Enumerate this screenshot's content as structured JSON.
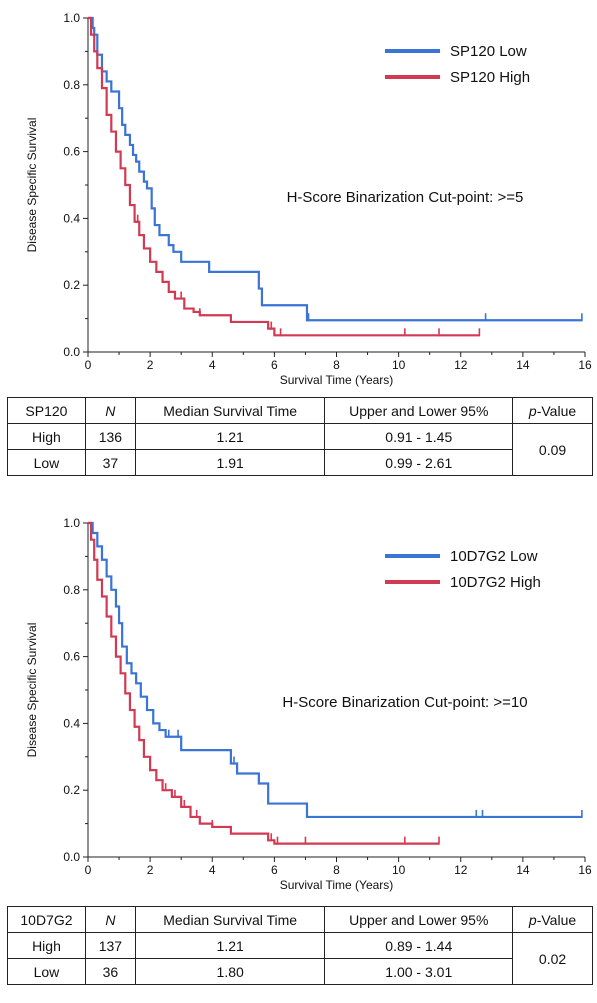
{
  "chart_data": [
    {
      "type": "line",
      "subtype": "kaplan-meier-step",
      "ylabel": "Disease Specific Survival",
      "xlabel": "Survival Time (Years)",
      "xlim": [
        0,
        16
      ],
      "ylim": [
        0,
        1.0
      ],
      "x_ticks": [
        0,
        2,
        4,
        6,
        8,
        10,
        12,
        14,
        16
      ],
      "y_ticks": [
        0.0,
        0.2,
        0.4,
        0.6,
        0.8,
        1.0
      ],
      "x_tick_labels": [
        "0",
        "2",
        "4",
        "6",
        "8",
        "10",
        "12",
        "14",
        "16"
      ],
      "y_tick_labels": [
        "0.0",
        "0.2",
        "0.4",
        "0.6",
        "0.8",
        "1.0"
      ],
      "annotation": "H-Score Binarization Cut-point: >=5",
      "legend_position": "top-right",
      "series": [
        {
          "name": "SP120 Low",
          "color": "#3a74d4",
          "x": [
            0,
            0.15,
            0.2,
            0.3,
            0.45,
            0.6,
            0.75,
            1.0,
            1.1,
            1.2,
            1.35,
            1.45,
            1.55,
            1.65,
            1.8,
            1.9,
            2.05,
            2.15,
            2.3,
            2.6,
            2.75,
            3.0,
            3.9,
            5.5,
            5.6,
            7.05,
            15.9
          ],
          "y": [
            1.0,
            0.97,
            0.95,
            0.89,
            0.84,
            0.81,
            0.78,
            0.73,
            0.68,
            0.65,
            0.62,
            0.59,
            0.57,
            0.54,
            0.51,
            0.49,
            0.43,
            0.38,
            0.35,
            0.32,
            0.3,
            0.27,
            0.24,
            0.19,
            0.14,
            0.095,
            0.095
          ],
          "censor_x": [
            7.1,
            12.8,
            15.9
          ]
        },
        {
          "name": "SP120 High",
          "color": "#d23a54",
          "x": [
            0,
            0.1,
            0.2,
            0.3,
            0.45,
            0.6,
            0.75,
            0.9,
            1.05,
            1.2,
            1.35,
            1.5,
            1.65,
            1.8,
            2.0,
            2.2,
            2.4,
            2.6,
            2.8,
            3.1,
            3.4,
            3.6,
            4.6,
            5.8,
            6.0,
            12.6
          ],
          "y": [
            1.0,
            0.95,
            0.9,
            0.85,
            0.79,
            0.71,
            0.66,
            0.6,
            0.55,
            0.5,
            0.44,
            0.39,
            0.35,
            0.31,
            0.27,
            0.24,
            0.21,
            0.18,
            0.16,
            0.13,
            0.12,
            0.11,
            0.09,
            0.07,
            0.05,
            0.05
          ],
          "censor_x": [
            1.6,
            2.4,
            2.6,
            2.8,
            3.0,
            3.6,
            4.6,
            5.9,
            6.2,
            10.2,
            11.3,
            12.6
          ]
        }
      ]
    },
    {
      "type": "line",
      "subtype": "kaplan-meier-step",
      "ylabel": "Disease Specific Survival",
      "xlabel": "Survival Time (Years)",
      "xlim": [
        0,
        16
      ],
      "ylim": [
        0,
        1.0
      ],
      "x_ticks": [
        0,
        2,
        4,
        6,
        8,
        10,
        12,
        14,
        16
      ],
      "y_ticks": [
        0.0,
        0.2,
        0.4,
        0.6,
        0.8,
        1.0
      ],
      "x_tick_labels": [
        "0",
        "2",
        "4",
        "6",
        "8",
        "10",
        "12",
        "14",
        "16"
      ],
      "y_tick_labels": [
        "0.0",
        "0.2",
        "0.4",
        "0.6",
        "0.8",
        "1.0"
      ],
      "annotation": "H-Score Binarization Cut-point: >=10",
      "legend_position": "top-right",
      "series": [
        {
          "name": "10D7G2 Low",
          "color": "#3a74d4",
          "x": [
            0,
            0.15,
            0.3,
            0.45,
            0.6,
            0.75,
            0.9,
            1.0,
            1.1,
            1.25,
            1.4,
            1.55,
            1.7,
            1.9,
            2.1,
            2.3,
            2.5,
            3.0,
            4.6,
            4.8,
            5.5,
            5.8,
            7.05,
            15.9
          ],
          "y": [
            1.0,
            0.97,
            0.93,
            0.89,
            0.84,
            0.8,
            0.75,
            0.7,
            0.63,
            0.58,
            0.55,
            0.52,
            0.48,
            0.44,
            0.4,
            0.38,
            0.36,
            0.32,
            0.28,
            0.25,
            0.22,
            0.16,
            0.12,
            0.12
          ],
          "censor_x": [
            2.6,
            2.9,
            4.7,
            12.5,
            12.7,
            15.9
          ]
        },
        {
          "name": "10D7G2 High",
          "color": "#d23a54",
          "x": [
            0,
            0.1,
            0.2,
            0.3,
            0.45,
            0.6,
            0.75,
            0.9,
            1.05,
            1.2,
            1.35,
            1.5,
            1.65,
            1.8,
            2.0,
            2.2,
            2.4,
            2.7,
            3.0,
            3.3,
            3.6,
            4.0,
            4.6,
            5.8,
            6.0,
            11.3
          ],
          "y": [
            1.0,
            0.95,
            0.89,
            0.83,
            0.78,
            0.72,
            0.66,
            0.6,
            0.55,
            0.49,
            0.44,
            0.39,
            0.35,
            0.3,
            0.26,
            0.23,
            0.2,
            0.18,
            0.15,
            0.12,
            0.1,
            0.09,
            0.07,
            0.05,
            0.04,
            0.04
          ],
          "censor_x": [
            1.5,
            2.0,
            2.5,
            2.8,
            3.1,
            3.5,
            4.0,
            5.9,
            6.1,
            7.0,
            10.2,
            11.3
          ]
        }
      ]
    }
  ],
  "tables": [
    {
      "header": [
        "SP120",
        "N",
        "Median Survival Time",
        "Upper and Lower 95%",
        "p-Value"
      ],
      "rows": [
        [
          "High",
          "136",
          "1.21",
          "0.91 - 1.45"
        ],
        [
          "Low",
          "37",
          "1.91",
          "0.99 - 2.61"
        ]
      ],
      "p_value": "0.09"
    },
    {
      "header": [
        "10D7G2",
        "N",
        "Median Survival Time",
        "Upper and Lower 95%",
        "p-Value"
      ],
      "rows": [
        [
          "High",
          "137",
          "1.21",
          "0.89 - 1.44"
        ],
        [
          "Low",
          "36",
          "1.80",
          "1.00 - 3.01"
        ]
      ],
      "p_value": "0.02"
    }
  ]
}
